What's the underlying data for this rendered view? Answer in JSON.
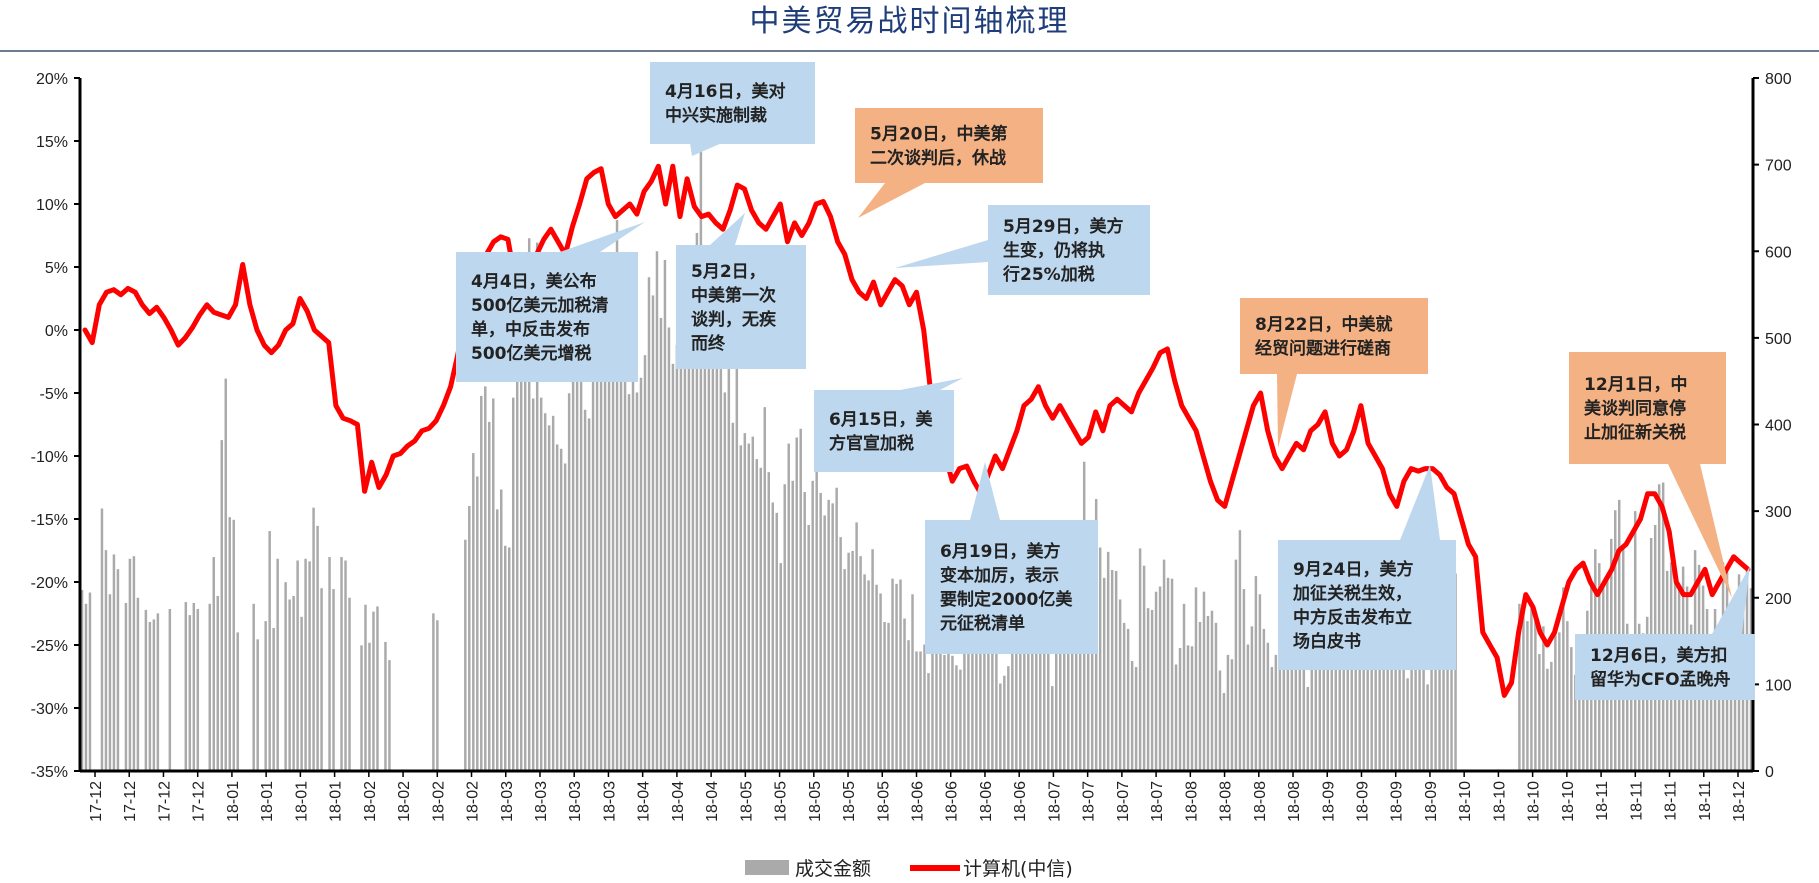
{
  "chart_data": {
    "type": "bar+line",
    "title": "中美贸易战时间轴梳理",
    "left_axis": {
      "min": -0.35,
      "max": 0.2,
      "ticks": [
        -0.35,
        -0.3,
        -0.25,
        -0.2,
        -0.15,
        -0.1,
        -0.05,
        0,
        0.05,
        0.1,
        0.15,
        0.2
      ],
      "tick_labels": [
        "-35%",
        "-30%",
        "-25%",
        "-20%",
        "-15%",
        "-10%",
        "-5%",
        "0%",
        "5%",
        "10%",
        "15%",
        "20%"
      ]
    },
    "right_axis": {
      "min": 0,
      "max": 800,
      "ticks": [
        0,
        100,
        200,
        300,
        400,
        500,
        600,
        700,
        800
      ],
      "tick_labels": [
        "0",
        "100",
        "200",
        "300",
        "400",
        "500",
        "600",
        "700",
        "800"
      ]
    },
    "x_tick_labels": [
      "17-12",
      "17-12",
      "17-12",
      "17-12",
      "18-01",
      "18-01",
      "18-01",
      "18-01",
      "18-02",
      "18-02",
      "18-02",
      "18-02",
      "18-03",
      "18-03",
      "18-03",
      "18-03",
      "18-04",
      "18-04",
      "18-04",
      "18-05",
      "18-05",
      "18-05",
      "18-05",
      "18-05",
      "18-06",
      "18-06",
      "18-06",
      "18-06",
      "18-07",
      "18-07",
      "18-07",
      "18-07",
      "18-08",
      "18-08",
      "18-08",
      "18-08",
      "18-09",
      "18-09",
      "18-09",
      "18-09",
      "18-10",
      "18-10",
      "18-10",
      "18-10",
      "18-11",
      "18-11",
      "18-11",
      "18-11",
      "18-12"
    ],
    "series": [
      {
        "name": "成交金额",
        "type": "bar",
        "axis": "right",
        "color": "#aaaaaa",
        "values": [
          209,
          193,
          206,
          null,
          null,
          303,
          255,
          204,
          250,
          233,
          null,
          194,
          245,
          248,
          200,
          null,
          186,
          172,
          175,
          182,
          null,
          null,
          187,
          null,
          null,
          null,
          195,
          180,
          194,
          187,
          null,
          null,
          193,
          247,
          202,
          382,
          453,
          293,
          290,
          160,
          null,
          null,
          null,
          193,
          152,
          null,
          173,
          277,
          165,
          245,
          null,
          218,
          198,
          202,
          243,
          178,
          245,
          242,
          304,
          283,
          211,
          null,
          247,
          210,
          null,
          247,
          243,
          200,
          null,
          null,
          145,
          192,
          148,
          184,
          190,
          null,
          149,
          128,
          null,
          null,
          null,
          null,
          null,
          null,
          null,
          null,
          null,
          null,
          182,
          174,
          null,
          null,
          null,
          null,
          null,
          null,
          267,
          306,
          367,
          340,
          433,
          444,
          403,
          430,
          302,
          325,
          260,
          258,
          431,
          519,
          471,
          580,
          615,
          430,
          610,
          431,
          413,
          399,
          410,
          377,
          372,
          355,
          436,
          498,
          467,
          482,
          417,
          407,
          461,
          536,
          513,
          561,
          471,
          523,
          636,
          523,
          580,
          435,
          458,
          437,
          454,
          480,
          570,
          549,
          600,
          523,
          590,
          512,
          470,
          492,
          604,
          578,
          542,
          487,
          621,
          720,
          542,
          530,
          593,
          500,
          478,
          437,
          528,
          402,
          480,
          376,
          390,
          378,
          386,
          360,
          350,
          420,
          345,
          310,
          298,
          240,
          331,
          378,
          335,
          385,
          395,
          322,
          284,
          335,
          351,
          321,
          295,
          313,
          309,
          327,
          270,
          233,
          252,
          254,
          287,
          248,
          227,
          220,
          256,
          215,
          205,
          172,
          171,
          222,
          216,
          221,
          176,
          151,
          204,
          138,
          138,
          146,
          113,
          148,
          152,
          186,
          134,
          142,
          133,
          122,
          117,
          272,
          228,
          212,
          211,
          217,
          305,
          190,
          195,
          158,
          101,
          110,
          121,
          181,
          180,
          153,
          242,
          220,
          192,
          272,
          260,
          216,
          166,
          98,
          162,
          212,
          263,
          220,
          202,
          273,
          232,
          357,
          265,
          276,
          314,
          258,
          223,
          253,
          232,
          231,
          198,
          171,
          164,
          127,
          120,
          257,
          237,
          188,
          186,
          207,
          213,
          244,
          223,
          222,
          123,
          142,
          193,
          145,
          144,
          212,
          172,
          207,
          179,
          185,
          171,
          116,
          90,
          134,
          129,
          244,
          278,
          210,
          146,
          167,
          225,
          204,
          164,
          148,
          120,
          134,
          199,
          230,
          188,
          184,
          219,
          253,
          175,
          97,
          149,
          136,
          131,
          168,
          144,
          195,
          133,
          133,
          180,
          220,
          205,
          213,
          250,
          265,
          128,
          250,
          172,
          154,
          123,
          148,
          137,
          147,
          134,
          153,
          107,
          120,
          200,
          169,
          146,
          100,
          190,
          179,
          135,
          160,
          258,
          248,
          228,
          null,
          null,
          null,
          null,
          null,
          null,
          null,
          null,
          null,
          null,
          null,
          null,
          null,
          null,
          null,
          193,
          187,
          173,
          188,
          172,
          135,
          167,
          118,
          126,
          161,
          160,
          212,
          173,
          143,
          111,
          144,
          144,
          185,
          218,
          256,
          240,
          213,
          223,
          268,
          301,
          313,
          258,
          170,
          147,
          300,
          170,
          159,
          178,
          269,
          284,
          331,
          333,
          231,
          241,
          236,
          214,
          236,
          213,
          169,
          255,
          238,
          214,
          187,
          140,
          187,
          139,
          241,
          230,
          155,
          158,
          227,
          205,
          236,
          211
        ]
      },
      {
        "name": "计算机(中信)",
        "type": "line",
        "axis": "left",
        "color": "#ff0000",
        "values": [
          0.0,
          -0.01,
          0.02,
          0.03,
          0.032,
          0.028,
          0.033,
          0.03,
          0.02,
          0.013,
          0.018,
          0.01,
          0.0,
          -0.012,
          -0.006,
          0.002,
          0.012,
          0.02,
          0.014,
          0.012,
          0.01,
          0.02,
          0.052,
          0.02,
          0.0,
          -0.012,
          -0.018,
          -0.012,
          0.0,
          0.005,
          0.025,
          0.015,
          0.0,
          -0.005,
          -0.01,
          -0.06,
          -0.07,
          -0.072,
          -0.075,
          -0.128,
          -0.105,
          -0.125,
          -0.115,
          -0.1,
          -0.098,
          -0.092,
          -0.088,
          -0.08,
          -0.078,
          -0.072,
          -0.06,
          -0.045,
          -0.02,
          0.01,
          0.035,
          0.05,
          0.06,
          0.07,
          0.074,
          0.072,
          0.04,
          0.03,
          0.05,
          0.06,
          0.072,
          0.08,
          0.07,
          0.06,
          0.082,
          0.1,
          0.12,
          0.125,
          0.128,
          0.1,
          0.09,
          0.095,
          0.1,
          0.092,
          0.11,
          0.118,
          0.13,
          0.1,
          0.13,
          0.09,
          0.12,
          0.098,
          0.09,
          0.092,
          0.085,
          0.08,
          0.095,
          0.115,
          0.112,
          0.095,
          0.085,
          0.08,
          0.09,
          0.1,
          0.07,
          0.085,
          0.075,
          0.085,
          0.1,
          0.102,
          0.09,
          0.07,
          0.06,
          0.04,
          0.03,
          0.025,
          0.038,
          0.02,
          0.03,
          0.04,
          0.035,
          0.02,
          0.03,
          0.0,
          -0.05,
          -0.08,
          -0.1,
          -0.12,
          -0.11,
          -0.108,
          -0.12,
          -0.13,
          -0.115,
          -0.1,
          -0.11,
          -0.095,
          -0.08,
          -0.06,
          -0.055,
          -0.045,
          -0.06,
          -0.07,
          -0.06,
          -0.07,
          -0.08,
          -0.09,
          -0.085,
          -0.065,
          -0.08,
          -0.06,
          -0.055,
          -0.06,
          -0.065,
          -0.05,
          -0.04,
          -0.03,
          -0.018,
          -0.015,
          -0.04,
          -0.06,
          -0.07,
          -0.08,
          -0.1,
          -0.12,
          -0.135,
          -0.14,
          -0.12,
          -0.1,
          -0.08,
          -0.06,
          -0.05,
          -0.08,
          -0.1,
          -0.11,
          -0.1,
          -0.09,
          -0.095,
          -0.08,
          -0.075,
          -0.065,
          -0.09,
          -0.1,
          -0.095,
          -0.08,
          -0.06,
          -0.09,
          -0.1,
          -0.11,
          -0.13,
          -0.14,
          -0.12,
          -0.11,
          -0.112,
          -0.11,
          -0.11,
          -0.115,
          -0.125,
          -0.13,
          -0.15,
          -0.17,
          -0.18,
          -0.24,
          -0.25,
          -0.26,
          -0.29,
          -0.28,
          -0.24,
          -0.21,
          -0.22,
          -0.24,
          -0.25,
          -0.24,
          -0.22,
          -0.2,
          -0.19,
          -0.185,
          -0.2,
          -0.21,
          -0.2,
          -0.19,
          -0.175,
          -0.17,
          -0.16,
          -0.15,
          -0.13,
          -0.13,
          -0.14,
          -0.16,
          -0.2,
          -0.21,
          -0.21,
          -0.2,
          -0.19,
          -0.21,
          -0.2,
          -0.19,
          -0.18,
          -0.185,
          -0.19
        ],
        "line_x_fraction_note": ""
      }
    ],
    "annotations": [
      {
        "lines": [
          "4月16日，美对",
          "中兴实施制裁"
        ],
        "color": "#bdd7ee",
        "tone": "blue"
      },
      {
        "lines": [
          "5月20日，中美第",
          "二次谈判后，休战"
        ],
        "color": "#f4b183",
        "tone": "orange"
      },
      {
        "lines": [
          "5月29日，美方",
          "生变，仍将执",
          "行25%加税"
        ],
        "color": "#bdd7ee",
        "tone": "blue"
      },
      {
        "lines": [
          "4月4日，美公布",
          "500亿美元加税清",
          "单，中反击发布",
          "500亿美元增税"
        ],
        "color": "#bdd7ee",
        "tone": "blue"
      },
      {
        "lines": [
          "5月2日，",
          "中美第一次",
          "谈判，无疾",
          "而终"
        ],
        "color": "#bdd7ee",
        "tone": "blue"
      },
      {
        "lines": [
          "6月15日，美",
          "方官宣加税"
        ],
        "color": "#bdd7ee",
        "tone": "blue"
      },
      {
        "lines": [
          "8月22日，中美就",
          "经贸问题进行磋商"
        ],
        "color": "#f4b183",
        "tone": "orange"
      },
      {
        "lines": [
          "6月19日，美方",
          "变本加厉，表示",
          "要制定2000亿美",
          "元征税清单"
        ],
        "color": "#bdd7ee",
        "tone": "blue"
      },
      {
        "lines": [
          "9月24日，美方",
          "加征关税生效，",
          "中方反击发布立",
          "场白皮书"
        ],
        "color": "#bdd7ee",
        "tone": "blue"
      },
      {
        "lines": [
          "12月1日，中",
          "美谈判同意停",
          "止加征新关税"
        ],
        "color": "#f4b183",
        "tone": "orange"
      },
      {
        "lines": [
          "12月6日，美方扣",
          "留华为CFO孟晚舟"
        ],
        "color": "#bdd7ee",
        "tone": "blue"
      }
    ],
    "legend": {
      "placement": "bottom-center",
      "items": [
        "成交金额",
        "计算机(中信)"
      ]
    },
    "grid": false
  }
}
